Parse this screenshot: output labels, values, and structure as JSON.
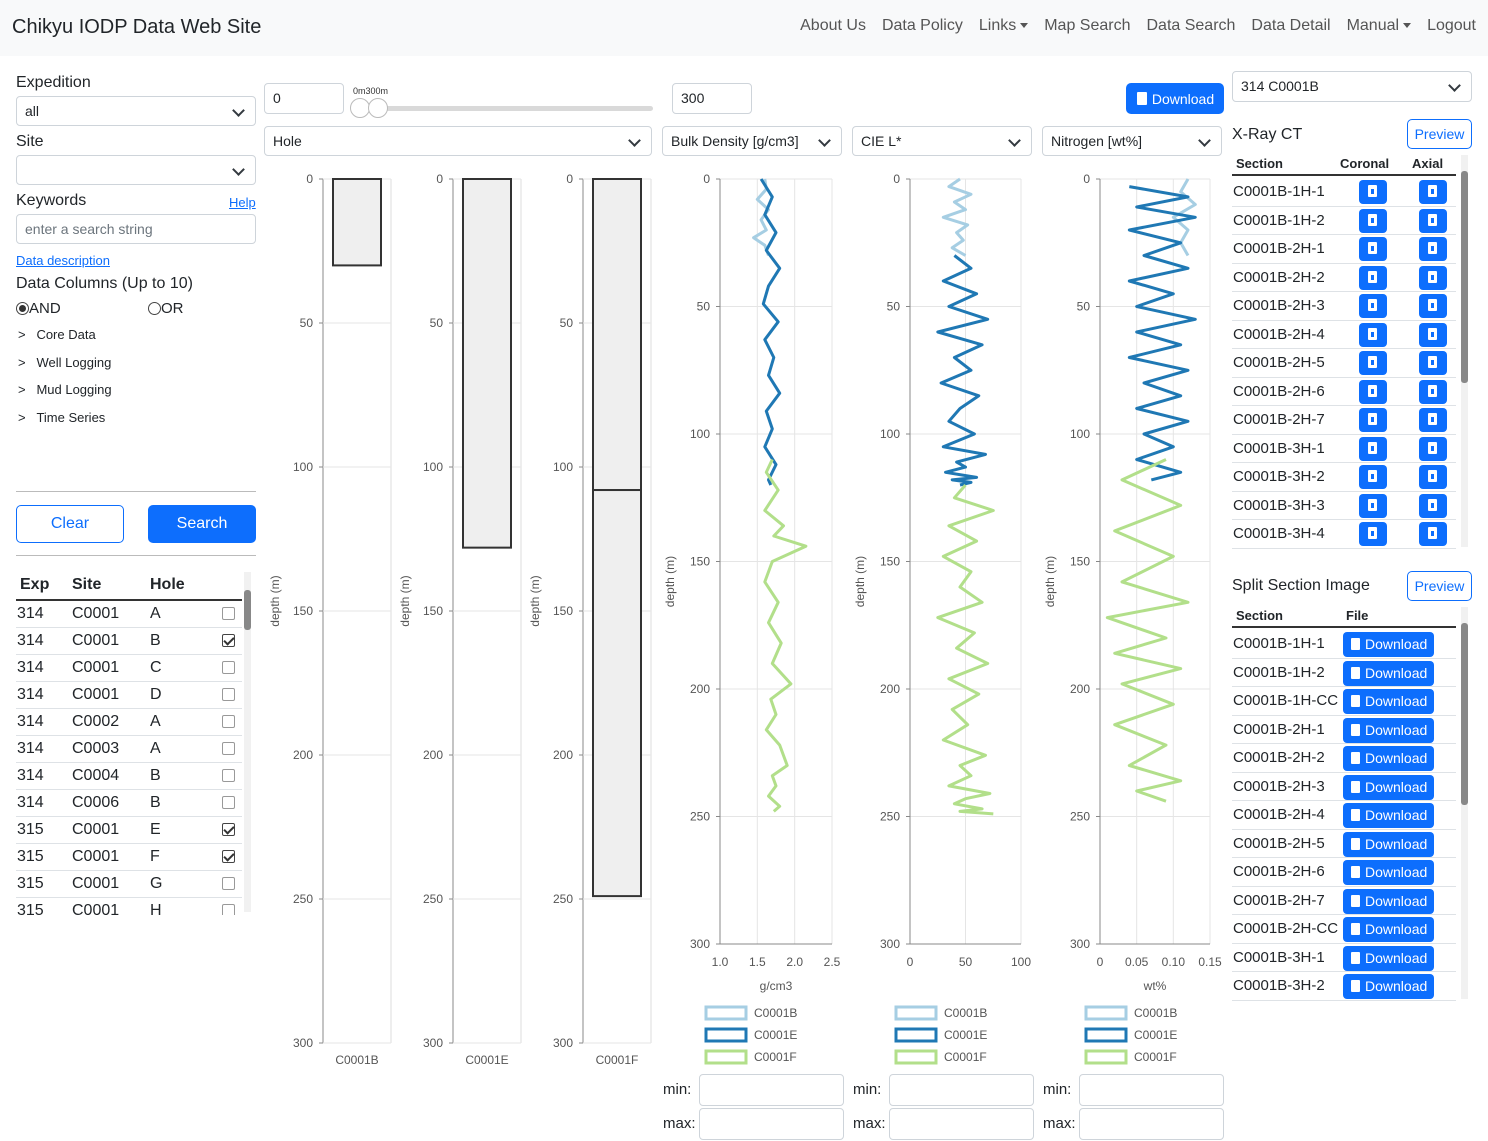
{
  "navbar": {
    "brand": "Chikyu IODP Data Web Site",
    "items": [
      {
        "label": "About Us",
        "dropdown": false
      },
      {
        "label": "Data Policy",
        "dropdown": false
      },
      {
        "label": "Links",
        "dropdown": true
      },
      {
        "label": "Map Search",
        "dropdown": false
      },
      {
        "label": "Data Search",
        "dropdown": false
      },
      {
        "label": "Data Detail",
        "dropdown": false
      },
      {
        "label": "Manual",
        "dropdown": true
      },
      {
        "label": "Logout",
        "dropdown": false
      }
    ]
  },
  "sidebar": {
    "expedition_label": "Expedition",
    "expedition_value": "all",
    "site_label": "Site",
    "site_value": "",
    "keywords_label": "Keywords",
    "help_link": "Help",
    "keywords_placeholder": "enter a search string",
    "data_description_link": "Data description",
    "data_columns_label": "Data Columns (Up to 10)",
    "and_label": "AND",
    "or_label": "OR",
    "tree": [
      "Core Data",
      "Well Logging",
      "Mud Logging",
      "Time Series"
    ],
    "tree_marker": ">",
    "clear_button": "Clear",
    "search_button": "Search",
    "table_headers": [
      "Exp",
      "Site",
      "Hole"
    ],
    "holes": [
      {
        "exp": "314",
        "site": "C0001",
        "hole": "A",
        "checked": false
      },
      {
        "exp": "314",
        "site": "C0001",
        "hole": "B",
        "checked": true
      },
      {
        "exp": "314",
        "site": "C0001",
        "hole": "C",
        "checked": false
      },
      {
        "exp": "314",
        "site": "C0001",
        "hole": "D",
        "checked": false
      },
      {
        "exp": "314",
        "site": "C0002",
        "hole": "A",
        "checked": false
      },
      {
        "exp": "314",
        "site": "C0003",
        "hole": "A",
        "checked": false
      },
      {
        "exp": "314",
        "site": "C0004",
        "hole": "B",
        "checked": false
      },
      {
        "exp": "314",
        "site": "C0006",
        "hole": "B",
        "checked": false
      },
      {
        "exp": "315",
        "site": "C0001",
        "hole": "E",
        "checked": true
      },
      {
        "exp": "315",
        "site": "C0001",
        "hole": "F",
        "checked": true
      },
      {
        "exp": "315",
        "site": "C0001",
        "hole": "G",
        "checked": false
      },
      {
        "exp": "315",
        "site": "C0001",
        "hole": "H",
        "checked": false
      }
    ]
  },
  "range": {
    "min_value": "0",
    "max_value": "300",
    "slider_label": "0m300m",
    "download_button": "Download"
  },
  "column_selects": [
    "Hole",
    "Bulk Density [g/cm3]",
    "CIE L*",
    "Nitrogen [wt%]"
  ],
  "colors": {
    "primary": "#0d6efd",
    "series1": "#a6cee3",
    "series2": "#1f78b4",
    "series3": "#b2df8a"
  },
  "chart_data": [
    {
      "type": "bar",
      "title": "",
      "ylabel": "depth (m)",
      "ylim": [
        0,
        300
      ],
      "y_ticks": [
        "0",
        "50",
        "100",
        "150",
        "200",
        "250",
        "300"
      ],
      "categories": [
        "C0001B",
        "C0001E",
        "C0001F"
      ],
      "intervals": [
        {
          "hole": "C0001B",
          "top": 0,
          "bottom": 30
        },
        {
          "hole": "C0001E",
          "top": 0,
          "bottom": 128
        },
        {
          "hole": "C0001F",
          "top": 0,
          "bottom": 108
        },
        {
          "hole": "C0001F",
          "top": 108,
          "bottom": 249
        }
      ]
    },
    {
      "type": "line",
      "xlabel": "g/cm3",
      "ylabel": "depth (m)",
      "xlim": [
        1.0,
        2.5
      ],
      "ylim": [
        0,
        300
      ],
      "x_ticks": [
        "1.0",
        "1.5",
        "2.0",
        "2.5"
      ],
      "y_ticks": [
        "0",
        "50",
        "100",
        "150",
        "200",
        "250",
        "300"
      ],
      "series": [
        {
          "name": "C0001B",
          "x": [
            1.6,
            1.62,
            1.5,
            1.65,
            1.55,
            1.62,
            1.45,
            1.6,
            1.65
          ],
          "depth": [
            0,
            4,
            8,
            12,
            16,
            20,
            23,
            26,
            30
          ]
        },
        {
          "name": "C0001E",
          "x": [
            1.55,
            1.7,
            1.6,
            1.75,
            1.62,
            1.8,
            1.65,
            1.58,
            1.78,
            1.6,
            1.72,
            1.65,
            1.8,
            1.62,
            1.7,
            1.6,
            1.75,
            1.65,
            1.68
          ],
          "depth": [
            0,
            7,
            14,
            21,
            28,
            35,
            42,
            49,
            56,
            63,
            70,
            77,
            84,
            91,
            98,
            105,
            112,
            118,
            120
          ]
        },
        {
          "name": "C0001F",
          "x": [
            1.7,
            1.62,
            1.78,
            1.6,
            1.85,
            1.72,
            2.15,
            1.7,
            1.6,
            1.78,
            1.65,
            1.82,
            1.7,
            1.95,
            1.68,
            1.75,
            1.62,
            1.8,
            1.9,
            1.7,
            1.75,
            1.65,
            1.8,
            1.72
          ],
          "depth": [
            110,
            115,
            122,
            130,
            136,
            140,
            144,
            150,
            158,
            166,
            174,
            182,
            190,
            198,
            204,
            210,
            216,
            222,
            230,
            234,
            238,
            242,
            246,
            248
          ]
        }
      ]
    },
    {
      "type": "line",
      "xlabel": "",
      "ylabel": "depth (m)",
      "xlim": [
        0,
        100
      ],
      "ylim": [
        0,
        300
      ],
      "x_ticks": [
        "0",
        "50",
        "100"
      ],
      "y_ticks": [
        "0",
        "50",
        "100",
        "150",
        "200",
        "250",
        "300"
      ],
      "series": [
        {
          "name": "C0001B",
          "x": [
            45,
            35,
            55,
            40,
            50,
            30,
            52,
            42,
            48,
            38,
            50
          ],
          "depth": [
            0,
            3,
            6,
            9,
            12,
            15,
            18,
            21,
            24,
            27,
            30
          ]
        },
        {
          "name": "C0001E",
          "x": [
            40,
            55,
            30,
            60,
            35,
            70,
            25,
            65,
            40,
            55,
            28,
            62,
            45,
            35,
            58,
            30,
            68,
            42,
            50,
            32,
            60,
            38,
            55,
            45
          ],
          "depth": [
            30,
            35,
            40,
            45,
            50,
            55,
            60,
            65,
            70,
            75,
            80,
            85,
            90,
            95,
            100,
            105,
            108,
            111,
            113,
            115,
            117,
            118,
            119,
            120
          ]
        },
        {
          "name": "C0001F",
          "x": [
            50,
            40,
            75,
            35,
            60,
            30,
            55,
            45,
            65,
            25,
            58,
            42,
            70,
            35,
            62,
            38,
            52,
            30,
            68,
            45,
            55,
            35,
            72,
            50,
            40,
            65,
            45,
            75
          ],
          "depth": [
            120,
            125,
            130,
            136,
            142,
            148,
            154,
            160,
            166,
            172,
            178,
            184,
            190,
            196,
            202,
            208,
            214,
            220,
            226,
            230,
            234,
            238,
            241,
            243,
            245,
            247,
            248,
            249
          ]
        }
      ]
    },
    {
      "type": "line",
      "xlabel": "wt%",
      "ylabel": "depth (m)",
      "xlim": [
        0,
        0.15
      ],
      "ylim": [
        0,
        300
      ],
      "x_ticks": [
        "0",
        "0.05",
        "0.10",
        "0.15"
      ],
      "y_ticks": [
        "0",
        "50",
        "100",
        "150",
        "200",
        "250",
        "300"
      ],
      "series": [
        {
          "name": "C0001B",
          "x": [
            0.12,
            0.11,
            0.13,
            0.1,
            0.12,
            0.11,
            0.12
          ],
          "depth": [
            0,
            5,
            10,
            15,
            20,
            25,
            30
          ]
        },
        {
          "name": "C0001E",
          "x": [
            0.04,
            0.12,
            0.05,
            0.13,
            0.04,
            0.11,
            0.06,
            0.12,
            0.04,
            0.1,
            0.05,
            0.13,
            0.05,
            0.11,
            0.04,
            0.12,
            0.06,
            0.11,
            0.05,
            0.12,
            0.06,
            0.1,
            0.05,
            0.11,
            0.07
          ],
          "depth": [
            3,
            7,
            11,
            15,
            20,
            25,
            30,
            35,
            40,
            45,
            50,
            55,
            60,
            65,
            70,
            75,
            80,
            85,
            90,
            95,
            100,
            105,
            110,
            115,
            118
          ]
        },
        {
          "name": "C0001F",
          "x": [
            0.09,
            0.03,
            0.11,
            0.02,
            0.1,
            0.03,
            0.12,
            0.01,
            0.09,
            0.02,
            0.11,
            0.03,
            0.1,
            0.02,
            0.09,
            0.04,
            0.11,
            0.05,
            0.09
          ],
          "depth": [
            110,
            118,
            128,
            138,
            148,
            158,
            166,
            172,
            180,
            186,
            192,
            198,
            206,
            214,
            222,
            230,
            236,
            240,
            244
          ]
        }
      ]
    }
  ],
  "legend": [
    "C0001B",
    "C0001E",
    "C0001F"
  ],
  "minmax": {
    "min_label": "min:",
    "max_label": "max:"
  },
  "right": {
    "hole_select": "314 C0001B",
    "xray_title": "X-Ray CT",
    "xray_preview": "Preview",
    "xray_headers": [
      "Section",
      "Coronal",
      "Axial"
    ],
    "xray_rows": [
      "C0001B-1H-1",
      "C0001B-1H-2",
      "C0001B-2H-1",
      "C0001B-2H-2",
      "C0001B-2H-3",
      "C0001B-2H-4",
      "C0001B-2H-5",
      "C0001B-2H-6",
      "C0001B-2H-7",
      "C0001B-3H-1",
      "C0001B-3H-2",
      "C0001B-3H-3",
      "C0001B-3H-4"
    ],
    "split_title": "Split Section Image",
    "split_preview": "Preview",
    "split_headers": [
      "Section",
      "File"
    ],
    "split_download": "Download",
    "split_rows": [
      "C0001B-1H-1",
      "C0001B-1H-2",
      "C0001B-1H-CC",
      "C0001B-2H-1",
      "C0001B-2H-2",
      "C0001B-2H-3",
      "C0001B-2H-4",
      "C0001B-2H-5",
      "C0001B-2H-6",
      "C0001B-2H-7",
      "C0001B-2H-CC",
      "C0001B-3H-1",
      "C0001B-3H-2"
    ]
  }
}
